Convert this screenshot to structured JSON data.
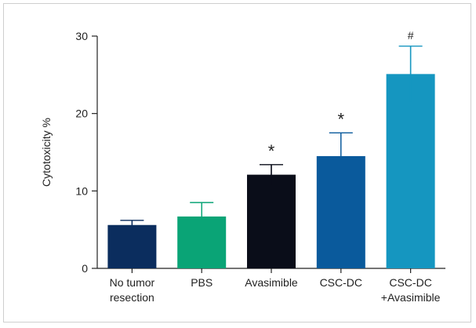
{
  "chart_data": {
    "type": "bar",
    "ylabel": "Cytotoxicity %",
    "xlabel": "",
    "ylim": [
      0,
      30
    ],
    "yticks": [
      0,
      10,
      20,
      30
    ],
    "categories": [
      [
        "No tumor",
        "resection"
      ],
      [
        "PBS"
      ],
      [
        "Avasimible"
      ],
      [
        "CSC-DC"
      ],
      [
        "CSC-DC",
        "+Avasimible"
      ]
    ],
    "values": [
      5.6,
      6.7,
      12.1,
      14.5,
      25.1
    ],
    "errors": [
      0.6,
      1.8,
      1.3,
      3.0,
      3.6
    ],
    "colors": [
      "#0b2d5e",
      "#0aa476",
      "#0a0d19",
      "#0a5a9c",
      "#1596c0"
    ],
    "annotations": [
      "",
      "",
      "*",
      "*",
      "#"
    ],
    "grid": false
  }
}
